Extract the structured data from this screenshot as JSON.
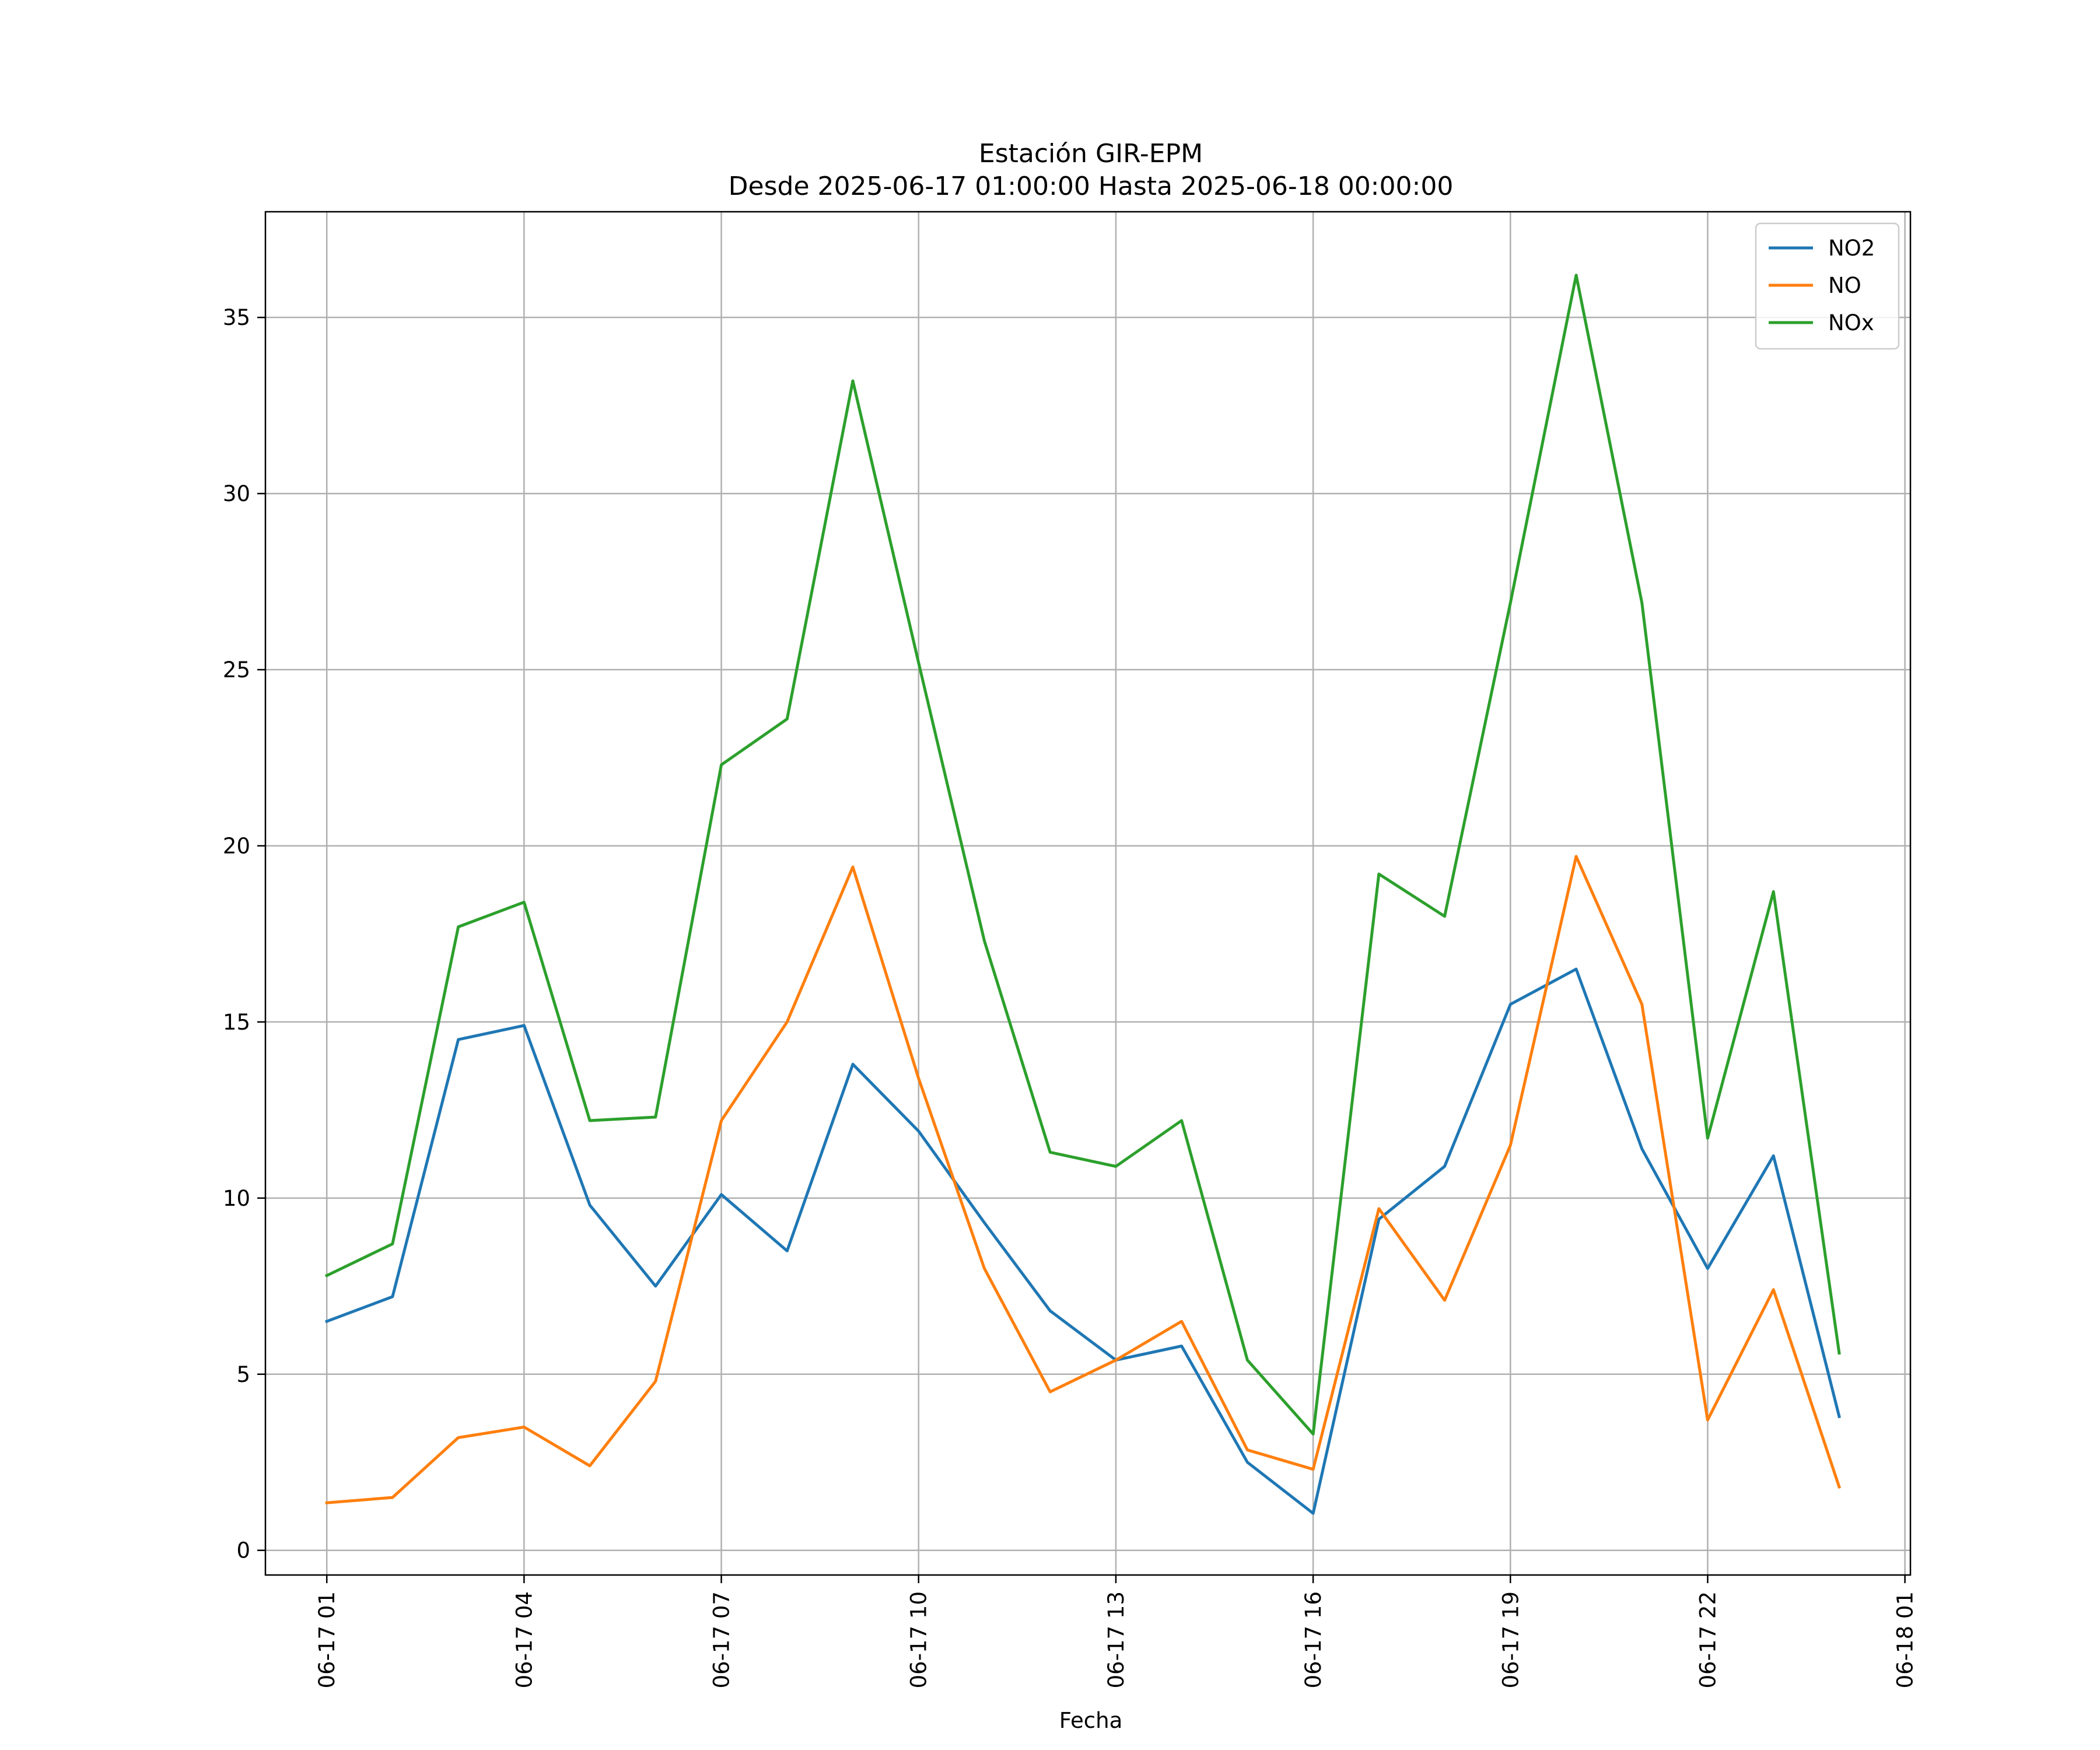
{
  "chart_data": {
    "type": "line",
    "title": "Estación GIR-EPM",
    "subtitle": "Desde 2025-06-17 01:00:00 Hasta 2025-06-18 00:00:00",
    "xlabel": "Fecha",
    "ylabel": "",
    "x": [
      "2025-06-17 01:00",
      "2025-06-17 02:00",
      "2025-06-17 03:00",
      "2025-06-17 04:00",
      "2025-06-17 05:00",
      "2025-06-17 06:00",
      "2025-06-17 07:00",
      "2025-06-17 08:00",
      "2025-06-17 09:00",
      "2025-06-17 10:00",
      "2025-06-17 11:00",
      "2025-06-17 12:00",
      "2025-06-17 13:00",
      "2025-06-17 14:00",
      "2025-06-17 15:00",
      "2025-06-17 16:00",
      "2025-06-17 17:00",
      "2025-06-17 18:00",
      "2025-06-17 19:00",
      "2025-06-17 20:00",
      "2025-06-17 21:00",
      "2025-06-17 22:00",
      "2025-06-17 23:00",
      "2025-06-18 00:00"
    ],
    "xlim": [
      "2025-06-17 00:04",
      "2025-06-18 01:05"
    ],
    "x_ticks": [
      {
        "value": "2025-06-17 01:00",
        "label": "06-17 01"
      },
      {
        "value": "2025-06-17 04:00",
        "label": "06-17 04"
      },
      {
        "value": "2025-06-17 07:00",
        "label": "06-17 07"
      },
      {
        "value": "2025-06-17 10:00",
        "label": "06-17 10"
      },
      {
        "value": "2025-06-17 13:00",
        "label": "06-17 13"
      },
      {
        "value": "2025-06-17 16:00",
        "label": "06-17 16"
      },
      {
        "value": "2025-06-17 19:00",
        "label": "06-17 19"
      },
      {
        "value": "2025-06-17 22:00",
        "label": "06-17 22"
      },
      {
        "value": "2025-06-18 01:00",
        "label": "06-18 01"
      }
    ],
    "ylim": [
      -0.7,
      38
    ],
    "y_ticks": [
      0,
      5,
      10,
      15,
      20,
      25,
      30,
      35
    ],
    "grid": true,
    "legend_position": "top-right",
    "series": [
      {
        "name": "NO2",
        "color": "#1f77b4",
        "values": [
          6.5,
          7.2,
          14.5,
          14.9,
          9.8,
          7.5,
          10.1,
          8.5,
          13.8,
          11.9,
          9.3,
          6.8,
          5.4,
          5.8,
          2.5,
          1.05,
          9.4,
          10.9,
          15.5,
          16.5,
          11.4,
          8.0,
          11.2,
          3.8
        ]
      },
      {
        "name": "NO",
        "color": "#ff7f0e",
        "values": [
          1.35,
          1.5,
          3.2,
          3.5,
          2.4,
          4.8,
          12.2,
          15.0,
          19.4,
          13.4,
          8.0,
          4.5,
          5.4,
          6.5,
          2.85,
          2.3,
          9.7,
          7.1,
          11.5,
          19.7,
          15.5,
          3.7,
          7.4,
          1.8
        ]
      },
      {
        "name": "NOx",
        "color": "#2ca02c",
        "values": [
          7.8,
          8.7,
          17.7,
          18.4,
          12.2,
          12.3,
          22.3,
          23.6,
          33.2,
          25.2,
          17.3,
          11.3,
          10.9,
          12.2,
          5.4,
          3.3,
          19.2,
          18.0,
          26.9,
          36.2,
          26.9,
          11.7,
          18.7,
          5.6
        ]
      }
    ]
  }
}
